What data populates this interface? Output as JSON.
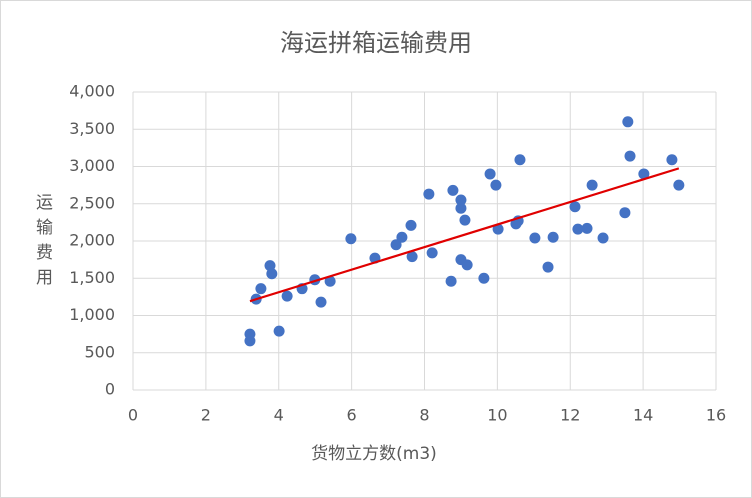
{
  "chart_data": {
    "type": "scatter",
    "title": "海运拼箱运输费用",
    "x_label": "货物立方数(m3)",
    "y_label": "运输费用",
    "color": "#4472c4",
    "trendline": "linear",
    "trendline_color": "#e00000",
    "grid": true,
    "xlim": [
      0,
      16
    ],
    "xticks": [
      0,
      2,
      4,
      6,
      8,
      10,
      12,
      14,
      16
    ],
    "ylim": [
      0,
      4000
    ],
    "yticks": [
      0,
      500,
      {
        "value": 1000,
        "label": "1,000"
      },
      {
        "value": 1500,
        "label": "1,500"
      },
      {
        "value": 2000,
        "label": "2,000"
      },
      {
        "value": 2500,
        "label": "2,500"
      },
      {
        "value": 3000,
        "label": "3,000"
      },
      {
        "value": 3500,
        "label": "3,500"
      },
      {
        "value": 4000,
        "label": "4,000"
      }
    ],
    "x": [
      3.21,
      3.21,
      3.38,
      3.51,
      3.76,
      3.81,
      4.01,
      4.23,
      4.64,
      4.99,
      5.16,
      5.41,
      5.98,
      6.64,
      7.22,
      7.38,
      7.63,
      7.66,
      8.12,
      8.21,
      8.73,
      8.78,
      9.0,
      9.0,
      9.0,
      9.11,
      9.17,
      9.63,
      9.8,
      9.96,
      10.02,
      10.51,
      10.57,
      10.62,
      11.03,
      11.39,
      11.53,
      12.13,
      12.21,
      12.46,
      12.6,
      12.9,
      13.5,
      13.58,
      13.64,
      14.02,
      14.79,
      14.98
    ],
    "values": [
      660,
      750,
      1220,
      1360,
      1670,
      1560,
      790,
      1260,
      1360,
      1480,
      1180,
      1460,
      2030,
      1770,
      1950,
      2050,
      2210,
      1790,
      2630,
      1840,
      1460,
      2680,
      2550,
      2440,
      1750,
      2280,
      1680,
      1500,
      2900,
      2750,
      2160,
      2230,
      2270,
      3090,
      2040,
      1650,
      2050,
      2460,
      2160,
      2170,
      2750,
      2040,
      2380,
      3600,
      3140,
      2900,
      3090,
      2750
    ]
  }
}
